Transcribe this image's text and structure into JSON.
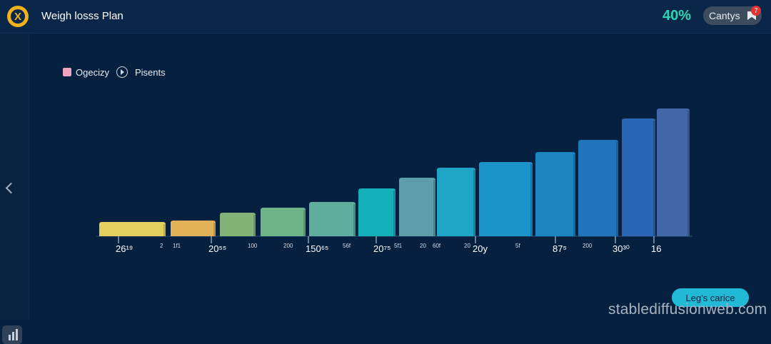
{
  "header": {
    "title": "Weigh losss Plan",
    "percent": "40%",
    "pill_label": "Cantys",
    "badge": "7"
  },
  "colors": {
    "accent": "#2ed3b4",
    "button": "#22b9d6",
    "background": "#06213f"
  },
  "legend": {
    "items": [
      {
        "label": "Ogecizy",
        "color": "#f2a3bf"
      },
      {
        "label": "Pisents",
        "color": "#cfd8e3"
      }
    ]
  },
  "chart_data": {
    "type": "bar",
    "title": "",
    "xlabel": "",
    "ylabel": "",
    "values": [
      20,
      22,
      33,
      40,
      48,
      67,
      82,
      96,
      104,
      118,
      135,
      165,
      179
    ],
    "colors": [
      "#e3cf5e",
      "#e3b158",
      "#84b377",
      "#6fb389",
      "#5fad9c",
      "#14b0ba",
      "#5c9eaa",
      "#1fa5c5",
      "#1c93c9",
      "#1b84c1",
      "#2074b9",
      "#2b66b4",
      "#4167a6"
    ],
    "primary_labels": [
      "26¹⁹",
      "20⁵⁵",
      "150⁶⁵",
      "20⁷⁵",
      "20y",
      "87⁵",
      "30³⁰",
      "16"
    ],
    "secondary_labels": [
      "2",
      "1f1",
      "100",
      "200",
      "56f",
      "5f1",
      "20",
      "60f",
      "20",
      "5f",
      "200"
    ]
  },
  "footer": {
    "button_label": "Leg's carice",
    "watermark": "stablediffusionweb.com"
  }
}
